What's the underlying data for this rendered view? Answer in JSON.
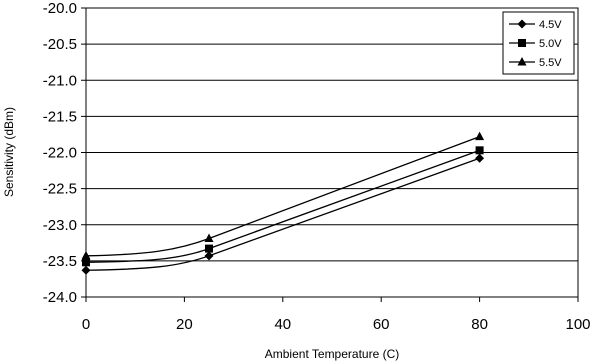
{
  "chart_data": {
    "type": "line",
    "title": "",
    "xlabel": "Ambient Temperature (C)",
    "ylabel": "Sensitivity (dBm)",
    "xlim": [
      0,
      100
    ],
    "ylim": [
      -24.0,
      -20.0
    ],
    "x_ticks": [
      "0",
      "20",
      "40",
      "60",
      "80",
      "100"
    ],
    "y_ticks": [
      "-20.0",
      "-20.5",
      "-21.0",
      "-21.5",
      "-22.0",
      "-22.5",
      "-23.0",
      "-23.5",
      "-24.0"
    ],
    "grid": "horizontal",
    "legend_position": "top-right",
    "series": [
      {
        "name": "4.5V",
        "marker": "diamond",
        "x": [
          0,
          25,
          80
        ],
        "y": [
          -23.63,
          -23.43,
          -22.08
        ]
      },
      {
        "name": "5.0V",
        "marker": "square",
        "x": [
          0,
          25,
          80
        ],
        "y": [
          -23.52,
          -23.33,
          -21.97
        ]
      },
      {
        "name": "5.5V",
        "marker": "triangle",
        "x": [
          0,
          25,
          80
        ],
        "y": [
          -23.43,
          -23.19,
          -21.78
        ]
      }
    ]
  }
}
